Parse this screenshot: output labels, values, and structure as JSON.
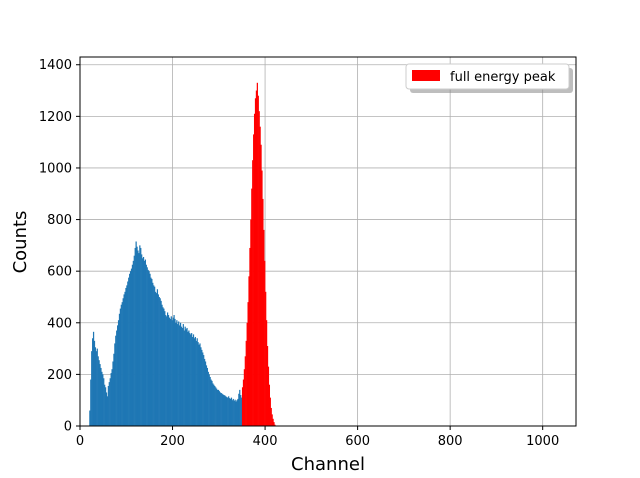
{
  "chart_data": {
    "type": "bar",
    "title": "",
    "xlabel": "Channel",
    "ylabel": "Counts",
    "xlim": [
      0,
      1072
    ],
    "ylim": [
      0,
      1430
    ],
    "xticks": [
      0,
      200,
      400,
      600,
      800,
      1000
    ],
    "yticks": [
      0,
      200,
      400,
      600,
      800,
      1000,
      1200,
      1400
    ],
    "grid": true,
    "legend_position": "top-right",
    "series": [
      {
        "color": "#1f77b4",
        "bins": [
          [
            20,
            60
          ],
          [
            22,
            180
          ],
          [
            24,
            290
          ],
          [
            26,
            340
          ],
          [
            28,
            365
          ],
          [
            30,
            330
          ],
          [
            32,
            305
          ],
          [
            34,
            290
          ],
          [
            36,
            300
          ],
          [
            38,
            270
          ],
          [
            40,
            255
          ],
          [
            42,
            240
          ],
          [
            44,
            225
          ],
          [
            46,
            210
          ],
          [
            48,
            200
          ],
          [
            50,
            185
          ],
          [
            52,
            160
          ],
          [
            54,
            150
          ],
          [
            56,
            130
          ],
          [
            58,
            115
          ],
          [
            60,
            155
          ],
          [
            62,
            170
          ],
          [
            64,
            185
          ],
          [
            66,
            205
          ],
          [
            68,
            220
          ],
          [
            70,
            250
          ],
          [
            72,
            280
          ],
          [
            74,
            320
          ],
          [
            76,
            350
          ],
          [
            78,
            370
          ],
          [
            80,
            390
          ],
          [
            82,
            410
          ],
          [
            84,
            435
          ],
          [
            86,
            455
          ],
          [
            88,
            470
          ],
          [
            90,
            480
          ],
          [
            92,
            495
          ],
          [
            94,
            510
          ],
          [
            96,
            520
          ],
          [
            98,
            535
          ],
          [
            100,
            545
          ],
          [
            102,
            560
          ],
          [
            104,
            575
          ],
          [
            106,
            590
          ],
          [
            108,
            600
          ],
          [
            110,
            610
          ],
          [
            112,
            625
          ],
          [
            114,
            640
          ],
          [
            116,
            660
          ],
          [
            118,
            690
          ],
          [
            120,
            715
          ],
          [
            122,
            695
          ],
          [
            124,
            680
          ],
          [
            126,
            670
          ],
          [
            128,
            700
          ],
          [
            130,
            690
          ],
          [
            132,
            665
          ],
          [
            134,
            650
          ],
          [
            136,
            655
          ],
          [
            138,
            640
          ],
          [
            140,
            645
          ],
          [
            142,
            625
          ],
          [
            144,
            615
          ],
          [
            146,
            605
          ],
          [
            148,
            600
          ],
          [
            150,
            590
          ],
          [
            152,
            575
          ],
          [
            154,
            570
          ],
          [
            156,
            555
          ],
          [
            158,
            545
          ],
          [
            160,
            540
          ],
          [
            162,
            520
          ],
          [
            164,
            515
          ],
          [
            166,
            530
          ],
          [
            168,
            510
          ],
          [
            170,
            500
          ],
          [
            172,
            495
          ],
          [
            174,
            485
          ],
          [
            176,
            470
          ],
          [
            178,
            460
          ],
          [
            180,
            455
          ],
          [
            182,
            445
          ],
          [
            184,
            430
          ],
          [
            186,
            425
          ],
          [
            188,
            440
          ],
          [
            190,
            430
          ],
          [
            192,
            420
          ],
          [
            194,
            415
          ],
          [
            196,
            425
          ],
          [
            198,
            410
          ],
          [
            200,
            420
          ],
          [
            202,
            430
          ],
          [
            204,
            415
          ],
          [
            206,
            400
          ],
          [
            208,
            410
          ],
          [
            210,
            395
          ],
          [
            212,
            405
          ],
          [
            214,
            390
          ],
          [
            216,
            400
          ],
          [
            218,
            385
          ],
          [
            220,
            380
          ],
          [
            222,
            395
          ],
          [
            224,
            370
          ],
          [
            226,
            385
          ],
          [
            228,
            375
          ],
          [
            230,
            380
          ],
          [
            232,
            365
          ],
          [
            234,
            370
          ],
          [
            236,
            360
          ],
          [
            238,
            355
          ],
          [
            240,
            360
          ],
          [
            242,
            345
          ],
          [
            244,
            355
          ],
          [
            246,
            340
          ],
          [
            248,
            345
          ],
          [
            250,
            330
          ],
          [
            252,
            340
          ],
          [
            254,
            325
          ],
          [
            256,
            315
          ],
          [
            258,
            320
          ],
          [
            260,
            305
          ],
          [
            262,
            295
          ],
          [
            264,
            285
          ],
          [
            266,
            275
          ],
          [
            268,
            260
          ],
          [
            270,
            250
          ],
          [
            272,
            235
          ],
          [
            274,
            225
          ],
          [
            276,
            210
          ],
          [
            278,
            200
          ],
          [
            280,
            190
          ],
          [
            282,
            180
          ],
          [
            284,
            175
          ],
          [
            286,
            165
          ],
          [
            288,
            160
          ],
          [
            290,
            155
          ],
          [
            292,
            150
          ],
          [
            294,
            145
          ],
          [
            296,
            140
          ],
          [
            298,
            140
          ],
          [
            300,
            135
          ],
          [
            302,
            130
          ],
          [
            304,
            128
          ],
          [
            306,
            125
          ],
          [
            308,
            122
          ],
          [
            310,
            120
          ],
          [
            312,
            118
          ],
          [
            314,
            115
          ],
          [
            316,
            112
          ],
          [
            318,
            110
          ],
          [
            320,
            115
          ],
          [
            322,
            108
          ],
          [
            324,
            105
          ],
          [
            326,
            110
          ],
          [
            328,
            100
          ],
          [
            330,
            105
          ],
          [
            332,
            98
          ],
          [
            334,
            102
          ],
          [
            336,
            95
          ],
          [
            338,
            100
          ],
          [
            340,
            105
          ],
          [
            342,
            125
          ],
          [
            344,
            140
          ],
          [
            346,
            120
          ],
          [
            348,
            110
          ]
        ]
      },
      {
        "name": "full energy peak",
        "color": "#ff0000",
        "bins": [
          [
            350,
            150
          ],
          [
            352,
            180
          ],
          [
            354,
            220
          ],
          [
            356,
            270
          ],
          [
            358,
            330
          ],
          [
            360,
            400
          ],
          [
            362,
            480
          ],
          [
            364,
            580
          ],
          [
            366,
            690
          ],
          [
            368,
            800
          ],
          [
            370,
            920
          ],
          [
            372,
            1030
          ],
          [
            374,
            1130
          ],
          [
            376,
            1210
          ],
          [
            378,
            1270
          ],
          [
            380,
            1300
          ],
          [
            382,
            1330
          ],
          [
            384,
            1280
          ],
          [
            386,
            1220
          ],
          [
            388,
            1160
          ],
          [
            390,
            1090
          ],
          [
            392,
            990
          ],
          [
            394,
            880
          ],
          [
            396,
            760
          ],
          [
            398,
            640
          ],
          [
            400,
            520
          ],
          [
            402,
            410
          ],
          [
            404,
            310
          ],
          [
            406,
            230
          ],
          [
            408,
            160
          ],
          [
            410,
            110
          ],
          [
            412,
            70
          ],
          [
            414,
            45
          ],
          [
            416,
            28
          ],
          [
            418,
            15
          ],
          [
            420,
            5
          ]
        ]
      }
    ]
  }
}
